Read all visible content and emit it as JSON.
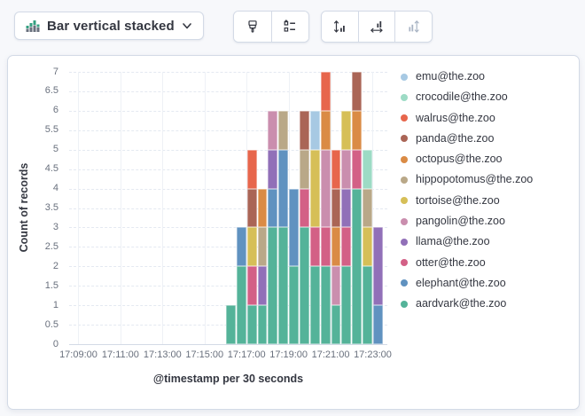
{
  "toolbar": {
    "chart_type": {
      "label": "Bar vertical stacked",
      "icon": "bar-vertical-stacked-icon"
    },
    "style_buttons": [
      {
        "icon": "brush-icon"
      },
      {
        "icon": "legend-settings-icon"
      }
    ],
    "axis_buttons": [
      {
        "icon": "left-axis-icon",
        "disabled": false
      },
      {
        "icon": "bottom-axis-icon",
        "disabled": false
      },
      {
        "icon": "right-axis-icon",
        "disabled": true
      }
    ]
  },
  "chart_data": {
    "type": "bar",
    "stacked": true,
    "orientation": "vertical",
    "ylabel": "Count of records",
    "xlabel": "@timestamp per 30 seconds",
    "ylim": [
      0,
      7
    ],
    "y_tick_step": 0.5,
    "x_ticks": [
      "17:09:00",
      "17:11:00",
      "17:13:00",
      "17:15:00",
      "17:17:00",
      "17:19:00",
      "17:21:00",
      "17:23:00"
    ],
    "x_axis_start": "17:08:30",
    "x_slot_seconds": 30,
    "grid": {
      "horizontal": "dashed",
      "vertical": "solid"
    },
    "legend_position": "right",
    "categories": [
      "17:16:00",
      "17:16:30",
      "17:17:00",
      "17:17:30",
      "17:18:00",
      "17:18:30",
      "17:19:00",
      "17:19:30",
      "17:20:00",
      "17:20:30",
      "17:21:00",
      "17:21:30",
      "17:22:00",
      "17:22:30",
      "17:23:00"
    ],
    "series": [
      {
        "name": "aardvark@the.zoo",
        "color": "#54B399",
        "values": [
          1,
          2,
          1,
          1,
          3,
          3,
          2,
          3,
          2,
          2,
          1,
          2,
          4,
          2,
          0
        ]
      },
      {
        "name": "elephant@the.zoo",
        "color": "#6092C0",
        "values": [
          0,
          1,
          0,
          0,
          1,
          2,
          2,
          0,
          0,
          0,
          0,
          0,
          0,
          0,
          1
        ]
      },
      {
        "name": "otter@the.zoo",
        "color": "#D36086",
        "values": [
          0,
          0,
          1,
          0,
          0,
          0,
          0,
          1,
          1,
          1,
          0,
          1,
          1,
          0,
          0
        ]
      },
      {
        "name": "llama@the.zoo",
        "color": "#9170B8",
        "values": [
          0,
          0,
          0,
          1,
          1,
          0,
          0,
          0,
          0,
          0,
          0,
          1,
          0,
          0,
          2
        ]
      },
      {
        "name": "pangolin@the.zoo",
        "color": "#CA8EAE",
        "values": [
          0,
          0,
          0,
          0,
          1,
          0,
          0,
          0,
          0,
          2,
          1,
          1,
          0,
          0,
          0
        ]
      },
      {
        "name": "tortoise@the.zoo",
        "color": "#D6BF57",
        "values": [
          0,
          0,
          1,
          0,
          0,
          0,
          0,
          0,
          2,
          0,
          0,
          1,
          0,
          1,
          0
        ]
      },
      {
        "name": "hippopotomus@the.zoo",
        "color": "#B9A888",
        "values": [
          0,
          0,
          0,
          1,
          0,
          1,
          0,
          1,
          0,
          0,
          0,
          0,
          0,
          1,
          0
        ]
      },
      {
        "name": "octopus@the.zoo",
        "color": "#DA8B45",
        "values": [
          0,
          0,
          0,
          1,
          0,
          0,
          0,
          0,
          0,
          1,
          1,
          0,
          1,
          0,
          0
        ]
      },
      {
        "name": "panda@the.zoo",
        "color": "#AA6556",
        "values": [
          0,
          0,
          1,
          0,
          0,
          0,
          0,
          1,
          0,
          0,
          1,
          0,
          1,
          0,
          0
        ]
      },
      {
        "name": "walrus@the.zoo",
        "color": "#E7664C",
        "values": [
          0,
          0,
          1,
          0,
          0,
          0,
          0,
          0,
          0,
          1,
          1,
          0,
          0,
          0,
          0
        ]
      },
      {
        "name": "crocodile@the.zoo",
        "color": "#9DDBC5",
        "values": [
          0,
          0,
          0,
          0,
          0,
          0,
          0,
          0,
          0,
          0,
          0,
          0,
          0,
          1,
          0
        ]
      },
      {
        "name": "emu@the.zoo",
        "color": "#A7C9E3",
        "values": [
          0,
          0,
          0,
          0,
          0,
          0,
          0,
          0,
          1,
          0,
          0,
          0,
          0,
          0,
          0
        ]
      }
    ]
  }
}
